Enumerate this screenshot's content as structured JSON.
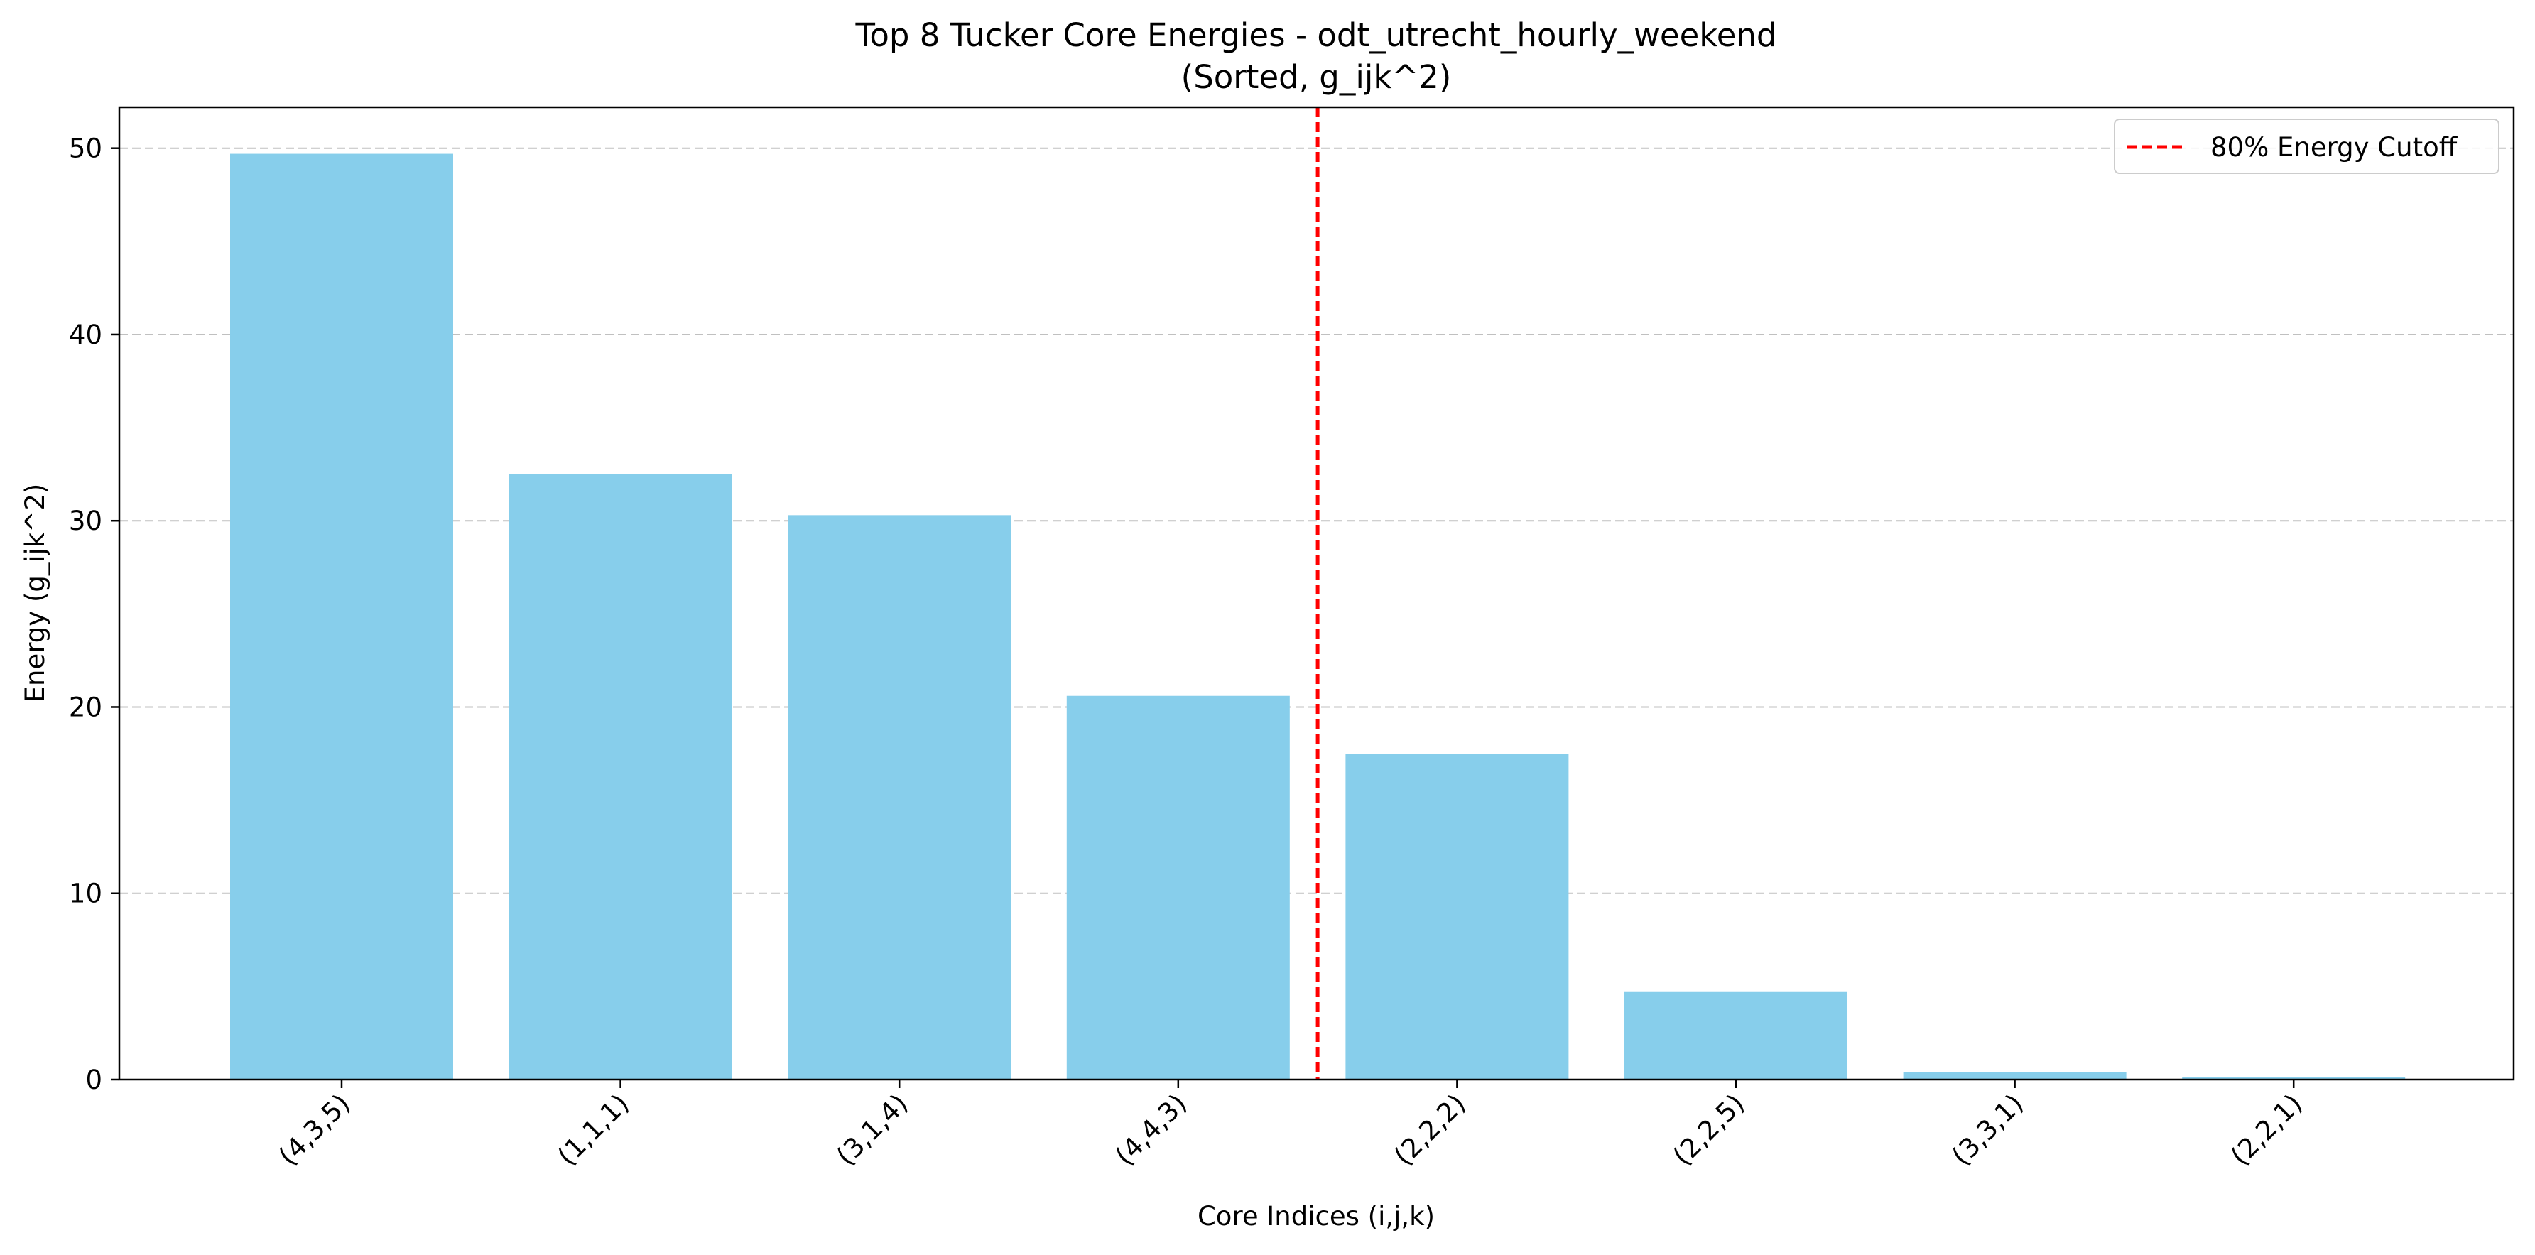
{
  "chart_data": {
    "type": "bar",
    "title": "Top 8 Tucker Core Energies - odt_utrecht_hourly_weekend",
    "subtitle": "(Sorted, g_ijk^2)",
    "xlabel": "Core Indices (i,j,k)",
    "ylabel": "Energy (g_ijk^2)",
    "categories": [
      "(4,3,5)",
      "(1,1,1)",
      "(3,1,4)",
      "(4,4,3)",
      "(2,2,2)",
      "(2,2,5)",
      "(3,3,1)",
      "(2,2,1)"
    ],
    "values": [
      49.7,
      32.5,
      30.3,
      20.6,
      17.5,
      4.7,
      0.4,
      0.15
    ],
    "ylim": [
      0,
      52.2
    ],
    "yticks": [
      0,
      10,
      20,
      30,
      40,
      50
    ],
    "bar_color": "#87CEEB",
    "grid": "y-dashed",
    "cutoff": {
      "label": "80% Energy Cutoff",
      "after_category_index": 3,
      "color": "#ff0000",
      "style": "dashed"
    },
    "legend_position": "top-right"
  }
}
